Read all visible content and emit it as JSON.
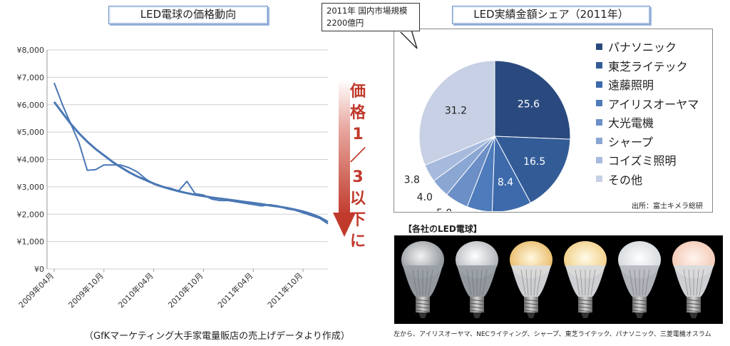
{
  "line_chart": {
    "title": "LED電球の価格動向",
    "footnote": "（GfKマーケティング大手家電量販店の売上げデータより作成）",
    "arrow_label": [
      "価",
      "格",
      "1",
      "／",
      "3",
      "以",
      "下",
      "に"
    ],
    "line_color": "#4a77b4",
    "arrow_color": "#c0392b"
  },
  "pie_chart": {
    "title": "LED実績金額シェア（2011年）",
    "callout": "2011年 国内市場規模 2200億円",
    "source": "出所：富士キメラ総研"
  },
  "bulbs": {
    "caption": "【各社のLED電球】",
    "footnote": "左から、アイリスオーヤマ、NECライティング、シャープ、東芝ライテック、パナソニック、三菱電機オスラム"
  },
  "chart_data": [
    {
      "type": "line",
      "title": "LED電球の価格動向",
      "xlabel": "",
      "ylabel": "",
      "ylim": [
        0,
        8000
      ],
      "y_ticks": [
        "¥0",
        "¥1,000",
        "¥2,000",
        "¥3,000",
        "¥4,000",
        "¥5,000",
        "¥6,000",
        "¥7,000",
        "¥8,000"
      ],
      "x_ticks": [
        "2009年04月",
        "2009年10月",
        "2010年04月",
        "2010年10月",
        "2011年04月",
        "2011年10月"
      ],
      "grid": true,
      "series": [
        {
          "name": "",
          "x": [
            "2009-04",
            "2009-05",
            "2009-06",
            "2009-07",
            "2009-08",
            "2009-09",
            "2009-10",
            "2009-11",
            "2009-12",
            "2010-01",
            "2010-02",
            "2010-03",
            "2010-04",
            "2010-05",
            "2010-06",
            "2010-07",
            "2010-08",
            "2010-09",
            "2010-10",
            "2010-11",
            "2010-12",
            "2011-01",
            "2011-02",
            "2011-03",
            "2011-04",
            "2011-05",
            "2011-06",
            "2011-07",
            "2011-08",
            "2011-09",
            "2011-10",
            "2011-11",
            "2011-12",
            "2012-01"
          ],
          "values": [
            6800,
            6000,
            5300,
            4600,
            3600,
            3630,
            3800,
            3800,
            3800,
            3700,
            3550,
            3300,
            3100,
            3000,
            2950,
            2850,
            3200,
            2750,
            2700,
            2550,
            2500,
            2500,
            2450,
            2400,
            2350,
            2300,
            2350,
            2300,
            2200,
            2150,
            2050,
            1950,
            1850,
            1650
          ]
        },
        {
          "name": "",
          "x": [
            "2009-04",
            "2009-05",
            "2009-06",
            "2009-07",
            "2009-08",
            "2009-09",
            "2009-10",
            "2009-11",
            "2009-12",
            "2010-01",
            "2010-02",
            "2010-03",
            "2010-04",
            "2010-05",
            "2010-06",
            "2010-07",
            "2010-08",
            "2010-09",
            "2010-10",
            "2010-11",
            "2010-12",
            "2011-01",
            "2011-02",
            "2011-03",
            "2011-04",
            "2011-05",
            "2011-06",
            "2011-07",
            "2011-08",
            "2011-09",
            "2011-10",
            "2011-11",
            "2011-12",
            "2012-01"
          ],
          "values": [
            6100,
            5700,
            5300,
            4950,
            4650,
            4380,
            4150,
            3920,
            3720,
            3540,
            3380,
            3250,
            3120,
            3010,
            2920,
            2840,
            2770,
            2710,
            2660,
            2610,
            2570,
            2530,
            2490,
            2450,
            2410,
            2370,
            2320,
            2280,
            2230,
            2170,
            2100,
            2010,
            1890,
            1720
          ]
        }
      ]
    },
    {
      "type": "pie",
      "title": "LED実績金額シェア（2011年）",
      "legend_position": "right",
      "categories": [
        "パナソニック",
        "東芝ライテック",
        "遠藤照明",
        "アイリスオーヤマ",
        "大光電機",
        "シャープ",
        "コイズミ照明",
        "その他"
      ],
      "values": [
        25.6,
        16.5,
        8.4,
        5.4,
        5.0,
        4.0,
        3.8,
        31.2
      ],
      "colors": [
        "#2a4a7f",
        "#335c97",
        "#3d6aab",
        "#4d7bbb",
        "#6b8fc6",
        "#8aa6d2",
        "#a6badd",
        "#c7d0e4"
      ]
    }
  ]
}
